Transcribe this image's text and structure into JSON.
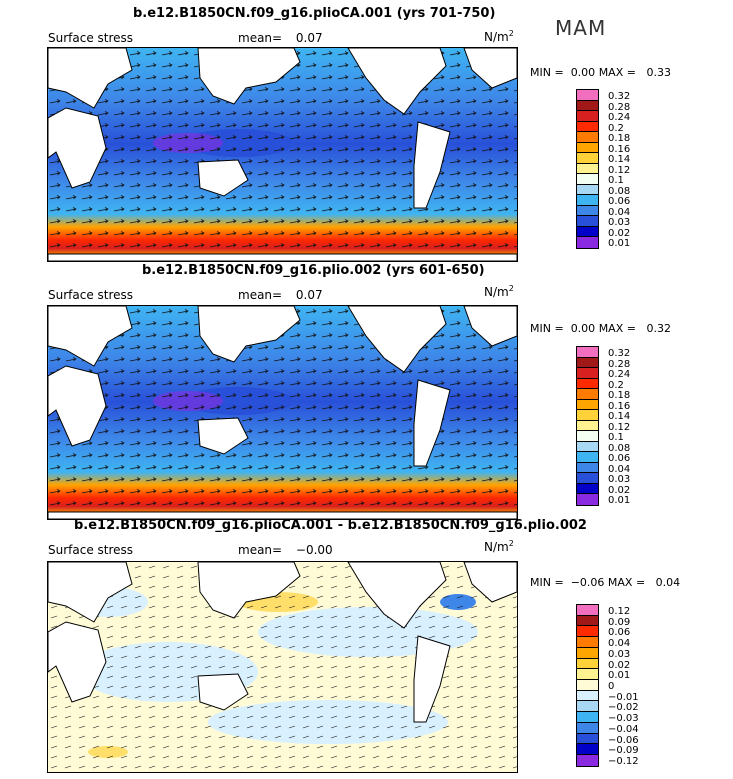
{
  "season": "MAM",
  "panels": [
    {
      "title": "b.e12.B1850CN.f09_g16.plioCA.001 (yrs 701-750)",
      "field": "Surface stress",
      "mean_label": "mean=",
      "mean_value": "0.07",
      "units_base": "N/m",
      "units_exp": "2",
      "min_label": "MIN =",
      "min_value": "0.00",
      "max_label": "MAX =",
      "max_value": "0.33",
      "colorbar_labels": [
        "0.32",
        "0.28",
        "0.24",
        "0.2",
        "0.18",
        "0.16",
        "0.14",
        "0.12",
        "0.1",
        "0.08",
        "0.06",
        "0.04",
        "0.03",
        "0.02",
        "0.01"
      ],
      "colorbar_colors": [
        "#f26fc0",
        "#a01818",
        "#d82020",
        "#ff2a00",
        "#ff7a00",
        "#ffa500",
        "#ffd23a",
        "#fff290",
        "#f2fff2",
        "#a9d8f5",
        "#3fb4f2",
        "#3e86e8",
        "#2850d8",
        "#0000c8",
        "#8a2be2"
      ]
    },
    {
      "title": "b.e12.B1850CN.f09_g16.plio.002 (yrs 601-650)",
      "field": "Surface stress",
      "mean_label": "mean=",
      "mean_value": "0.07",
      "units_base": "N/m",
      "units_exp": "2",
      "min_label": "MIN =",
      "min_value": "0.00",
      "max_label": "MAX =",
      "max_value": "0.32",
      "colorbar_labels": [
        "0.32",
        "0.28",
        "0.24",
        "0.2",
        "0.18",
        "0.16",
        "0.14",
        "0.12",
        "0.1",
        "0.08",
        "0.06",
        "0.04",
        "0.03",
        "0.02",
        "0.01"
      ],
      "colorbar_colors": [
        "#f26fc0",
        "#a01818",
        "#d82020",
        "#ff2a00",
        "#ff7a00",
        "#ffa500",
        "#ffd23a",
        "#fff290",
        "#f2fff2",
        "#a9d8f5",
        "#3fb4f2",
        "#3e86e8",
        "#2850d8",
        "#0000c8",
        "#8a2be2"
      ]
    },
    {
      "title": "b.e12.B1850CN.f09_g16.plioCA.001 - b.e12.B1850CN.f09_g16.plio.002",
      "field": "Surface stress",
      "mean_label": "mean=",
      "mean_value": "−0.00",
      "units_base": "N/m",
      "units_exp": "2",
      "min_label": "MIN =",
      "min_value": "−0.06",
      "max_label": "MAX =",
      "max_value": "0.04",
      "colorbar_labels": [
        "0.12",
        "0.09",
        "0.06",
        "0.04",
        "0.03",
        "0.02",
        "0.01",
        "0",
        "−0.01",
        "−0.02",
        "−0.03",
        "−0.04",
        "−0.06",
        "−0.09",
        "−0.12"
      ],
      "colorbar_colors": [
        "#f26fc0",
        "#a01818",
        "#ff2a00",
        "#ff7a00",
        "#ffa500",
        "#ffd23a",
        "#fff290",
        "#fffbd6",
        "#d9f0ff",
        "#a9d8f5",
        "#3fb4f2",
        "#3e86e8",
        "#2850d8",
        "#0000c8",
        "#8a2be2"
      ]
    }
  ],
  "chart_data": [
    {
      "type": "heatmap",
      "title": "b.e12.B1850CN.f09_g16.plioCA.001 (yrs 701-750)",
      "variable": "Surface stress",
      "units": "N/m2",
      "season": "MAM",
      "mean": 0.07,
      "min": 0.0,
      "max": 0.33,
      "contour_levels": [
        0.01,
        0.02,
        0.03,
        0.04,
        0.06,
        0.08,
        0.1,
        0.12,
        0.14,
        0.16,
        0.18,
        0.2,
        0.24,
        0.28,
        0.32
      ]
    },
    {
      "type": "heatmap",
      "title": "b.e12.B1850CN.f09_g16.plio.002 (yrs 601-650)",
      "variable": "Surface stress",
      "units": "N/m2",
      "season": "MAM",
      "mean": 0.07,
      "min": 0.0,
      "max": 0.32,
      "contour_levels": [
        0.01,
        0.02,
        0.03,
        0.04,
        0.06,
        0.08,
        0.1,
        0.12,
        0.14,
        0.16,
        0.18,
        0.2,
        0.24,
        0.28,
        0.32
      ]
    },
    {
      "type": "heatmap",
      "title": "b.e12.B1850CN.f09_g16.plioCA.001 - b.e12.B1850CN.f09_g16.plio.002",
      "variable": "Surface stress",
      "units": "N/m2",
      "season": "MAM",
      "mean": -0.0,
      "min": -0.06,
      "max": 0.04,
      "contour_levels": [
        -0.12,
        -0.09,
        -0.06,
        -0.04,
        -0.03,
        -0.02,
        -0.01,
        0,
        0.01,
        0.02,
        0.03,
        0.04,
        0.06,
        0.09,
        0.12
      ]
    }
  ]
}
